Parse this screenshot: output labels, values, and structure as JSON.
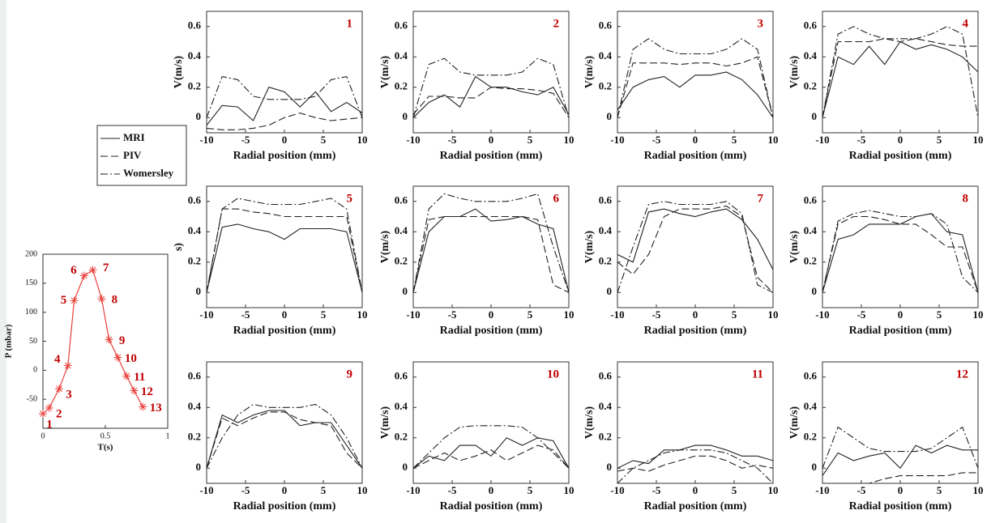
{
  "chart_data": [
    {
      "type": "pressure",
      "x": [
        0,
        0.05,
        0.13,
        0.2,
        0.25,
        0.33,
        0.4,
        0.47,
        0.53,
        0.6,
        0.67,
        0.73,
        0.8
      ],
      "values": [
        -75,
        -65,
        -32,
        8,
        120,
        163,
        173,
        123,
        53,
        22,
        -10,
        -35,
        -63
      ],
      "point_labels": [
        "1",
        "2",
        "3",
        "4",
        "5",
        "6",
        "7",
        "8",
        "9",
        "10",
        "11",
        "12",
        "13"
      ],
      "color": "#e8403a",
      "label_color": "#c00000",
      "xlim": [
        0,
        1
      ],
      "xticks": [
        0,
        0.5,
        1
      ],
      "ylim": [
        -100,
        200
      ],
      "yticks": [
        -50,
        0,
        50,
        100,
        150,
        200
      ],
      "x_label": "T(s)",
      "y_label": "P (mbar)"
    },
    {
      "type": "line",
      "panel_label": "1",
      "legend": true,
      "y_label": "V(m/s)",
      "x_label": "Radial position (mm)",
      "x": [
        -10,
        -8,
        -6,
        -4,
        -2,
        0,
        2,
        4,
        6,
        8,
        10
      ],
      "xlim": [
        -10,
        10
      ],
      "xticks": [
        -10,
        -5,
        0,
        5,
        10
      ],
      "ylim": [
        -0.1,
        0.7
      ],
      "yticks": [
        0,
        0.2,
        0.4,
        0.6
      ],
      "series": [
        {
          "name": "MRI",
          "dash": "solid",
          "color": "#222",
          "values": [
            -0.05,
            0.08,
            0.07,
            -0.02,
            0.2,
            0.17,
            0.07,
            0.17,
            0.04,
            0.1,
            0.03
          ]
        },
        {
          "name": "PIV",
          "dash": "dashed",
          "color": "#222",
          "values": [
            -0.07,
            -0.08,
            -0.08,
            -0.07,
            -0.05,
            0.0,
            0.03,
            0.0,
            -0.02,
            -0.01,
            0
          ]
        },
        {
          "name": "Womersley",
          "dash": "dashdot",
          "color": "#222",
          "values": [
            0,
            0.27,
            0.25,
            0.14,
            0.12,
            0.12,
            0.12,
            0.14,
            0.25,
            0.27,
            0
          ]
        }
      ]
    },
    {
      "type": "line",
      "panel_label": "2",
      "y_label": "V(m/s)",
      "x_label": "Radial position (mm)",
      "x": [
        -10,
        -8,
        -6,
        -4,
        -2,
        0,
        2,
        4,
        6,
        8,
        10
      ],
      "xlim": [
        -10,
        10
      ],
      "xticks": [
        -10,
        -5,
        0,
        5,
        10
      ],
      "ylim": [
        -0.1,
        0.7
      ],
      "yticks": [
        0,
        0.2,
        0.4,
        0.6
      ],
      "series": [
        {
          "name": "MRI",
          "dash": "solid",
          "color": "#222",
          "values": [
            0,
            0.1,
            0.15,
            0.07,
            0.27,
            0.2,
            0.2,
            0.17,
            0.15,
            0.2,
            0.02
          ]
        },
        {
          "name": "PIV",
          "dash": "dashed",
          "color": "#222",
          "values": [
            0.02,
            0.14,
            0.14,
            0.13,
            0.13,
            0.2,
            0.19,
            0.19,
            0.18,
            0.16,
            0
          ]
        },
        {
          "name": "Womersley",
          "dash": "dashdot",
          "color": "#222",
          "values": [
            0,
            0.35,
            0.39,
            0.3,
            0.28,
            0.28,
            0.28,
            0.3,
            0.39,
            0.35,
            0
          ]
        }
      ]
    },
    {
      "type": "line",
      "panel_label": "3",
      "y_label": "V(m/s)",
      "x_label": "Radial position (mm)",
      "x": [
        -10,
        -8,
        -6,
        -4,
        -2,
        0,
        2,
        4,
        6,
        8,
        10
      ],
      "xlim": [
        -10,
        10
      ],
      "xticks": [
        -10,
        -5,
        0,
        5,
        10
      ],
      "ylim": [
        -0.1,
        0.7
      ],
      "yticks": [
        0,
        0.2,
        0.4,
        0.6
      ],
      "series": [
        {
          "name": "MRI",
          "dash": "solid",
          "color": "#222",
          "values": [
            0.05,
            0.2,
            0.25,
            0.27,
            0.2,
            0.28,
            0.28,
            0.3,
            0.25,
            0.15,
            0
          ]
        },
        {
          "name": "PIV",
          "dash": "dashed",
          "color": "#222",
          "values": [
            0,
            0.36,
            0.36,
            0.36,
            0.35,
            0.36,
            0.36,
            0.34,
            0.36,
            0.4,
            0
          ]
        },
        {
          "name": "Womersley",
          "dash": "dashdot",
          "color": "#222",
          "values": [
            0,
            0.45,
            0.52,
            0.45,
            0.42,
            0.42,
            0.42,
            0.45,
            0.52,
            0.45,
            0
          ]
        }
      ]
    },
    {
      "type": "line",
      "panel_label": "4",
      "y_label": "V(m/s)",
      "x_label": "Radial position (mm)",
      "x": [
        -10,
        -8,
        -6,
        -4,
        -2,
        0,
        2,
        4,
        6,
        8,
        10
      ],
      "xlim": [
        -10,
        10
      ],
      "xticks": [
        -10,
        -5,
        0,
        5,
        10
      ],
      "ylim": [
        -0.1,
        0.7
      ],
      "yticks": [
        0,
        0.2,
        0.4,
        0.6
      ],
      "series": [
        {
          "name": "MRI",
          "dash": "solid",
          "color": "#222",
          "values": [
            0,
            0.4,
            0.35,
            0.47,
            0.35,
            0.5,
            0.45,
            0.48,
            0.45,
            0.4,
            0.3
          ]
        },
        {
          "name": "PIV",
          "dash": "dashed",
          "color": "#222",
          "values": [
            0,
            0.5,
            0.5,
            0.5,
            0.52,
            0.5,
            0.52,
            0.5,
            0.48,
            0.47,
            0.47
          ]
        },
        {
          "name": "Womersley",
          "dash": "dashdot",
          "color": "#222",
          "values": [
            0,
            0.55,
            0.6,
            0.55,
            0.52,
            0.52,
            0.52,
            0.55,
            0.6,
            0.55,
            0
          ]
        }
      ]
    },
    {
      "type": "line",
      "panel_label": "5",
      "y_label": "s)",
      "x_label": "Radial position (mm)",
      "x": [
        -10,
        -8,
        -6,
        -4,
        -2,
        0,
        2,
        4,
        6,
        8,
        10
      ],
      "xlim": [
        -10,
        10
      ],
      "xticks": [
        -10,
        -5,
        0,
        5,
        10
      ],
      "ylim": [
        -0.1,
        0.7
      ],
      "yticks": [
        0,
        0.2,
        0.4,
        0.6
      ],
      "series": [
        {
          "name": "MRI",
          "dash": "solid",
          "color": "#222",
          "values": [
            0,
            0.43,
            0.45,
            0.42,
            0.4,
            0.35,
            0.42,
            0.42,
            0.42,
            0.4,
            0
          ]
        },
        {
          "name": "PIV",
          "dash": "dashed",
          "color": "#222",
          "values": [
            0,
            0.55,
            0.55,
            0.53,
            0.52,
            0.5,
            0.5,
            0.5,
            0.5,
            0.5,
            0
          ]
        },
        {
          "name": "Womersley",
          "dash": "dashdot",
          "color": "#222",
          "values": [
            0,
            0.55,
            0.62,
            0.6,
            0.58,
            0.58,
            0.58,
            0.6,
            0.62,
            0.55,
            0
          ]
        }
      ]
    },
    {
      "type": "line",
      "panel_label": "6",
      "y_label": "V(m/s)",
      "x_label": "Radial position (mm)",
      "x": [
        -10,
        -8,
        -6,
        -4,
        -2,
        0,
        2,
        4,
        6,
        8,
        10
      ],
      "xlim": [
        -10,
        10
      ],
      "xticks": [
        -10,
        -5,
        0,
        5,
        10
      ],
      "ylim": [
        -0.1,
        0.7
      ],
      "yticks": [
        0,
        0.2,
        0.4,
        0.6
      ],
      "series": [
        {
          "name": "MRI",
          "dash": "solid",
          "color": "#222",
          "values": [
            0,
            0.4,
            0.5,
            0.5,
            0.55,
            0.47,
            0.48,
            0.5,
            0.45,
            0.42,
            0
          ]
        },
        {
          "name": "PIV",
          "dash": "dashed",
          "color": "#222",
          "values": [
            0,
            0.48,
            0.5,
            0.5,
            0.5,
            0.5,
            0.5,
            0.5,
            0.48,
            0.05,
            0
          ]
        },
        {
          "name": "Womersley",
          "dash": "dashdot",
          "color": "#222",
          "values": [
            0,
            0.55,
            0.65,
            0.62,
            0.6,
            0.6,
            0.6,
            0.62,
            0.65,
            0.3,
            0
          ]
        }
      ]
    },
    {
      "type": "line",
      "panel_label": "7",
      "y_label": "V(m/s)",
      "x_label": "Radial position (mm)",
      "x": [
        -10,
        -8,
        -6,
        -4,
        -2,
        0,
        2,
        4,
        6,
        8,
        10
      ],
      "xlim": [
        -10,
        10
      ],
      "xticks": [
        -10,
        -5,
        0,
        5,
        10
      ],
      "ylim": [
        -0.1,
        0.7
      ],
      "yticks": [
        0,
        0.2,
        0.4,
        0.6
      ],
      "series": [
        {
          "name": "MRI",
          "dash": "solid",
          "color": "#222",
          "values": [
            0.25,
            0.2,
            0.53,
            0.55,
            0.52,
            0.5,
            0.53,
            0.55,
            0.48,
            0.35,
            0.15
          ]
        },
        {
          "name": "PIV",
          "dash": "dashed",
          "color": "#222",
          "values": [
            0.2,
            0.12,
            0.25,
            0.5,
            0.55,
            0.55,
            0.55,
            0.57,
            0.5,
            0.1,
            0
          ]
        },
        {
          "name": "Womersley",
          "dash": "dashdot",
          "color": "#222",
          "values": [
            0,
            0.3,
            0.58,
            0.6,
            0.58,
            0.58,
            0.58,
            0.6,
            0.52,
            0.05,
            0
          ]
        }
      ]
    },
    {
      "type": "line",
      "panel_label": "8",
      "y_label": "V(m/s)",
      "x_label": "Radial position (mm)",
      "x": [
        -10,
        -8,
        -6,
        -4,
        -2,
        0,
        2,
        4,
        6,
        8,
        10
      ],
      "xlim": [
        -10,
        10
      ],
      "xticks": [
        -10,
        -5,
        0,
        5,
        10
      ],
      "ylim": [
        -0.1,
        0.7
      ],
      "yticks": [
        0,
        0.2,
        0.4,
        0.6
      ],
      "series": [
        {
          "name": "MRI",
          "dash": "solid",
          "color": "#222",
          "values": [
            0,
            0.35,
            0.38,
            0.45,
            0.45,
            0.45,
            0.5,
            0.52,
            0.4,
            0.38,
            0
          ]
        },
        {
          "name": "PIV",
          "dash": "dashed",
          "color": "#222",
          "values": [
            0,
            0.45,
            0.5,
            0.5,
            0.48,
            0.45,
            0.45,
            0.38,
            0.3,
            0.3,
            0
          ]
        },
        {
          "name": "Womersley",
          "dash": "dashdot",
          "color": "#222",
          "values": [
            0,
            0.47,
            0.52,
            0.54,
            0.52,
            0.5,
            0.5,
            0.52,
            0.45,
            0.1,
            0
          ]
        }
      ]
    },
    {
      "type": "line",
      "panel_label": "9",
      "x_label": "Radial position (mm)",
      "x": [
        -10,
        -8,
        -6,
        -4,
        -2,
        0,
        2,
        4,
        6,
        8,
        10
      ],
      "xlim": [
        -10,
        10
      ],
      "xticks": [
        -10,
        -5,
        0,
        5,
        10
      ],
      "ylim": [
        -0.1,
        0.7
      ],
      "yticks": [
        0,
        0.2,
        0.4,
        0.6
      ],
      "series": [
        {
          "name": "MRI",
          "dash": "solid",
          "color": "#222",
          "values": [
            0,
            0.35,
            0.3,
            0.35,
            0.38,
            0.38,
            0.28,
            0.3,
            0.3,
            0.15,
            0
          ]
        },
        {
          "name": "PIV",
          "dash": "dashed",
          "color": "#222",
          "values": [
            0,
            0.33,
            0.28,
            0.33,
            0.37,
            0.37,
            0.32,
            0.3,
            0.28,
            0.1,
            0
          ]
        },
        {
          "name": "Womersley",
          "dash": "dashdot",
          "color": "#222",
          "values": [
            0,
            0.2,
            0.35,
            0.42,
            0.4,
            0.4,
            0.4,
            0.42,
            0.35,
            0.2,
            0
          ]
        }
      ]
    },
    {
      "type": "line",
      "panel_label": "10",
      "y_label": "V(m/s)",
      "x_label": "Radial position (mm)",
      "x": [
        -10,
        -8,
        -6,
        -4,
        -2,
        0,
        2,
        4,
        6,
        8,
        10
      ],
      "xlim": [
        -10,
        10
      ],
      "xticks": [
        -10,
        -5,
        0,
        5,
        10
      ],
      "ylim": [
        -0.1,
        0.7
      ],
      "yticks": [
        0,
        0.2,
        0.4,
        0.6
      ],
      "series": [
        {
          "name": "MRI",
          "dash": "solid",
          "color": "#222",
          "values": [
            0,
            0.08,
            0.05,
            0.15,
            0.15,
            0.08,
            0.2,
            0.15,
            0.2,
            0.18,
            0
          ]
        },
        {
          "name": "PIV",
          "dash": "dashed",
          "color": "#222",
          "values": [
            0,
            0.05,
            0.1,
            0.05,
            0.08,
            0.12,
            0.05,
            0.1,
            0.15,
            0.12,
            0
          ]
        },
        {
          "name": "Womersley",
          "dash": "dashdot",
          "color": "#222",
          "values": [
            0,
            0.1,
            0.2,
            0.27,
            0.28,
            0.28,
            0.28,
            0.27,
            0.2,
            0.1,
            0
          ]
        }
      ]
    },
    {
      "type": "line",
      "panel_label": "11",
      "y_label": "V(m/s)",
      "x_label": "Radial position (mm)",
      "x": [
        -10,
        -8,
        -6,
        -4,
        -2,
        0,
        2,
        4,
        6,
        8,
        10
      ],
      "xlim": [
        -10,
        10
      ],
      "xticks": [
        -10,
        -5,
        0,
        5,
        10
      ],
      "ylim": [
        -0.1,
        0.7
      ],
      "yticks": [
        0,
        0.2,
        0.4,
        0.6
      ],
      "series": [
        {
          "name": "MRI",
          "dash": "solid",
          "color": "#222",
          "values": [
            0,
            0.05,
            0.03,
            0.12,
            0.12,
            0.15,
            0.15,
            0.12,
            0.08,
            0.08,
            0.05
          ]
        },
        {
          "name": "PIV",
          "dash": "dashed",
          "color": "#222",
          "values": [
            -0.02,
            0,
            -0.02,
            0.02,
            0.05,
            0.08,
            0.08,
            0.05,
            0,
            0.02,
            0
          ]
        },
        {
          "name": "Womersley",
          "dash": "dashdot",
          "color": "#222",
          "values": [
            -0.1,
            0,
            0.05,
            0.1,
            0.12,
            0.12,
            0.12,
            0.1,
            0.05,
            0,
            -0.1
          ]
        }
      ]
    },
    {
      "type": "line",
      "panel_label": "12",
      "y_label": "V(m/s)",
      "x_label": "Radial position (mm)",
      "x": [
        -10,
        -8,
        -6,
        -4,
        -2,
        0,
        2,
        4,
        6,
        8,
        10
      ],
      "xlim": [
        -10,
        10
      ],
      "xticks": [
        -10,
        -5,
        0,
        5,
        10
      ],
      "ylim": [
        -0.1,
        0.7
      ],
      "yticks": [
        0,
        0.2,
        0.4,
        0.6
      ],
      "series": [
        {
          "name": "MRI",
          "dash": "solid",
          "color": "#222",
          "values": [
            -0.05,
            0.1,
            0.05,
            0.08,
            0.1,
            0,
            0.15,
            0.1,
            0.15,
            0.12,
            0.12
          ]
        },
        {
          "name": "PIV",
          "dash": "dashed",
          "color": "#222",
          "values": [
            -0.1,
            -0.1,
            -0.1,
            -0.1,
            -0.07,
            -0.05,
            -0.05,
            -0.05,
            -0.05,
            -0.03,
            -0.03
          ]
        },
        {
          "name": "Womersley",
          "dash": "dashdot",
          "color": "#222",
          "values": [
            0,
            0.27,
            0.2,
            0.13,
            0.11,
            0.11,
            0.11,
            0.13,
            0.2,
            0.27,
            0
          ]
        }
      ]
    }
  ]
}
